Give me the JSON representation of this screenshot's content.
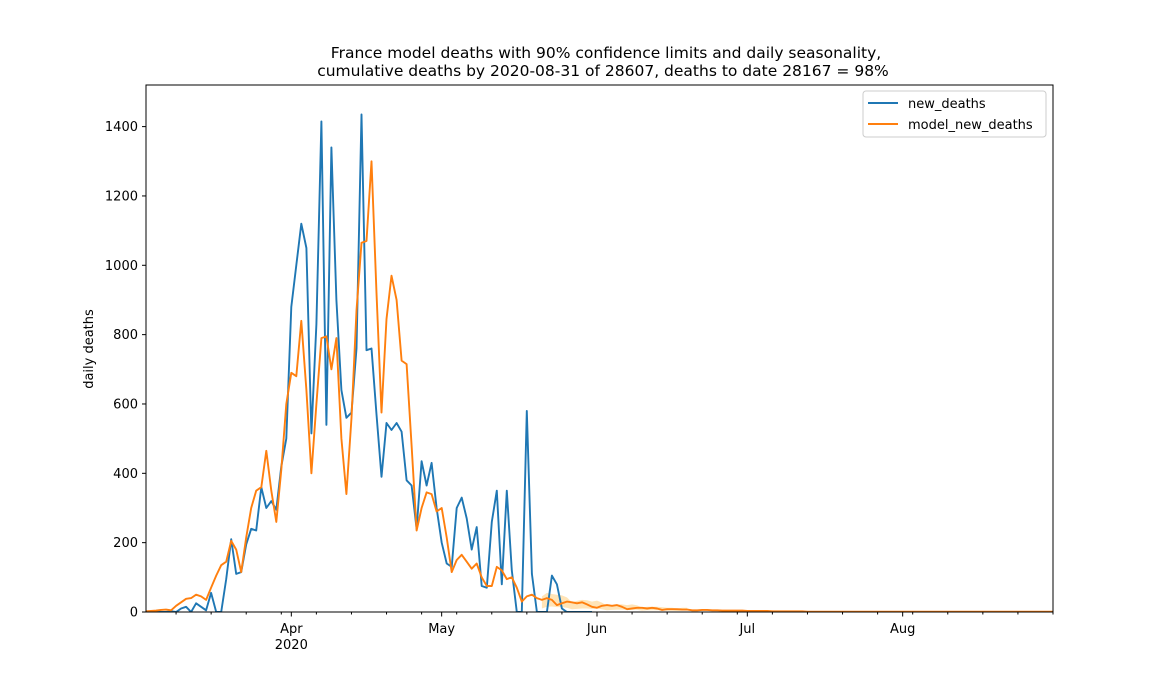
{
  "chart_data": {
    "type": "line",
    "title": [
      "France model deaths with 90% confidence limits and daily seasonality,",
      "cumulative deaths by 2020-08-31 of 28607, deaths to date 28167 = 98%"
    ],
    "xlabel": "",
    "ylabel": "daily deaths",
    "x_start": "2020-03-03",
    "x_end": "2020-08-31",
    "xlim": [
      "2020-03-03",
      "2020-08-31"
    ],
    "ylim": [
      0,
      1520
    ],
    "yticks": [
      0,
      200,
      400,
      600,
      800,
      1000,
      1200,
      1400
    ],
    "xticks": [
      {
        "date": "2020-04-01",
        "label": "Apr",
        "sublabel": "2020"
      },
      {
        "date": "2020-05-01",
        "label": "May",
        "sublabel": ""
      },
      {
        "date": "2020-06-01",
        "label": "Jun",
        "sublabel": ""
      },
      {
        "date": "2020-07-01",
        "label": "Jul",
        "sublabel": ""
      },
      {
        "date": "2020-08-01",
        "label": "Aug",
        "sublabel": ""
      }
    ],
    "grid": false,
    "legend_position": "top-right",
    "series": [
      {
        "name": "new_deaths",
        "color": "#1f77b4",
        "start": "2020-03-03",
        "values": [
          0,
          0,
          0,
          0,
          0,
          2,
          0,
          10,
          15,
          0,
          25,
          15,
          5,
          55,
          0,
          0,
          95,
          210,
          110,
          115,
          195,
          240,
          235,
          360,
          300,
          320,
          295,
          420,
          500,
          880,
          1000,
          1120,
          1050,
          515,
          830,
          1415,
          540,
          1340,
          900,
          640,
          560,
          575,
          760,
          1435,
          755,
          760,
          570,
          390,
          545,
          525,
          545,
          520,
          380,
          365,
          240,
          435,
          365,
          430,
          300,
          200,
          140,
          130,
          300,
          330,
          270,
          180,
          245,
          75,
          70,
          260,
          350,
          80,
          350,
          120,
          0,
          0,
          580,
          110,
          0,
          0,
          0,
          105,
          80,
          10,
          0,
          0,
          0,
          0,
          0,
          0
        ]
      },
      {
        "name": "model_new_deaths",
        "color": "#ff7f0e",
        "start": "2020-03-03",
        "values": [
          2,
          3,
          4,
          6,
          7,
          5,
          18,
          28,
          38,
          40,
          50,
          45,
          35,
          70,
          105,
          135,
          145,
          205,
          180,
          115,
          215,
          300,
          350,
          360,
          465,
          350,
          260,
          410,
          600,
          690,
          680,
          840,
          640,
          400,
          600,
          790,
          795,
          700,
          790,
          500,
          340,
          560,
          870,
          1065,
          1070,
          1300,
          920,
          575,
          845,
          970,
          900,
          725,
          715,
          480,
          235,
          300,
          345,
          340,
          290,
          300,
          215,
          115,
          150,
          165,
          145,
          125,
          140,
          100,
          75,
          75,
          130,
          120,
          95,
          100,
          70,
          30,
          45,
          50,
          40,
          35,
          40,
          35,
          20,
          25,
          30,
          28,
          25,
          28,
          22,
          15,
          12,
          18,
          20,
          18,
          20,
          15,
          8,
          10,
          12,
          12,
          10,
          12,
          10,
          6,
          8,
          8,
          8,
          7,
          7,
          5,
          5,
          6,
          6,
          5,
          5,
          4,
          4,
          4,
          4,
          4,
          3,
          3,
          3,
          3,
          3,
          2,
          2,
          2,
          2,
          2,
          2,
          2,
          1,
          1,
          1,
          1,
          1,
          1,
          1,
          1,
          1,
          1,
          1,
          1,
          1,
          1,
          1,
          1,
          1,
          1,
          1,
          1,
          1,
          1,
          1,
          1,
          1,
          1,
          1,
          1,
          1,
          1,
          1,
          1,
          1,
          1,
          1,
          1,
          1,
          1,
          1,
          1,
          1,
          1,
          1,
          1,
          1,
          1,
          1,
          1,
          1,
          1,
          1,
          1,
          1,
          1,
          1,
          1,
          1,
          1,
          1
        ]
      }
    ],
    "confidence_band": {
      "color": "#ffd999",
      "start": "2020-05-21",
      "lower": [
        10,
        15,
        16,
        14,
        14,
        12,
        8,
        9,
        10,
        10,
        9,
        10,
        8,
        5,
        6,
        7,
        7,
        6,
        7,
        6,
        4,
        5,
        5,
        5,
        5,
        4,
        4,
        3,
        4,
        4
      ],
      "upper": [
        45,
        55,
        52,
        50,
        48,
        42,
        28,
        32,
        35,
        34,
        30,
        33,
        27,
        18,
        20,
        22,
        22,
        20,
        22,
        19,
        13,
        15,
        15,
        15,
        14,
        12,
        12,
        10,
        12,
        12
      ]
    }
  }
}
